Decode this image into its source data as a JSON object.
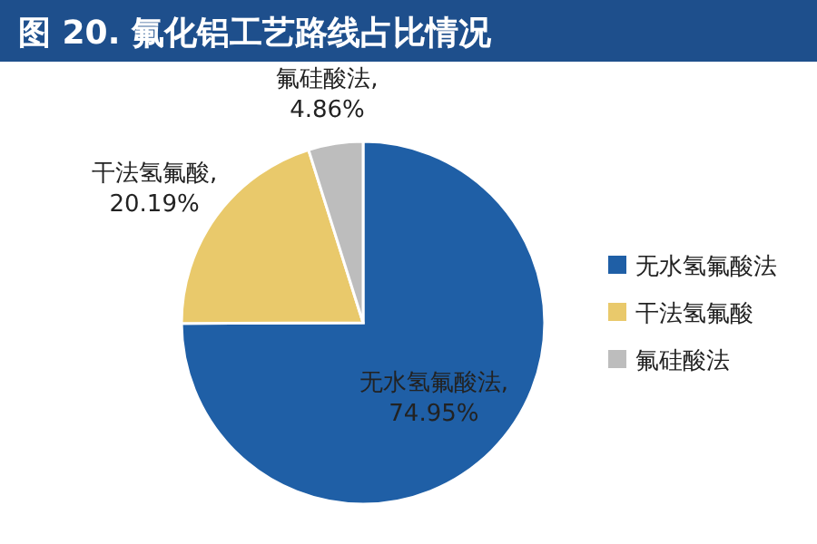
{
  "chart_data": {
    "type": "pie",
    "title": "图 20. 氟化铝工艺路线占比情况",
    "categories": [
      "无水氢氟酸法",
      "干法氢氟酸",
      "氟硅酸法"
    ],
    "values": [
      74.95,
      20.19,
      4.86
    ],
    "colors": [
      "#1f5fa6",
      "#e9c96b",
      "#bdbdbd"
    ],
    "value_labels": [
      "无水氢氟酸法, 74.95%",
      "干法氢氟酸, 20.19%",
      "氟硅酸法, 4.86%"
    ],
    "legend": "right"
  }
}
